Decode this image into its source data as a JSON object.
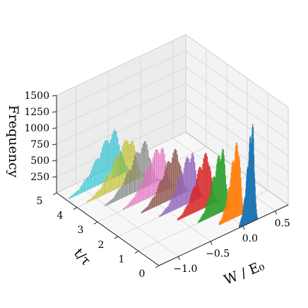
{
  "chart_data": {
    "type": "3d-histogram",
    "xlabel": "W / E₀",
    "ylabel": "t/τ",
    "zlabel": "Frequency",
    "x_ticks": [
      "−1.0",
      "−0.5",
      "0.0",
      "0.5"
    ],
    "y_ticks": [
      "0",
      "1",
      "2",
      "3",
      "4",
      "5"
    ],
    "z_ticks": [
      "250",
      "500",
      "750",
      "1000",
      "1250",
      "1500"
    ],
    "xlim": [
      -1.3,
      0.7
    ],
    "ylim": [
      0,
      5
    ],
    "zlim": [
      0,
      1500
    ],
    "grid": true,
    "series": [
      {
        "t": 0.0,
        "color": "#1f77b4",
        "peak_W": 0.15,
        "width_W": 0.05,
        "peak_freq": 1350
      },
      {
        "t": 0.5,
        "color": "#ff7f0e",
        "peak_W": 0.08,
        "width_W": 0.07,
        "peak_freq": 1050
      },
      {
        "t": 1.0,
        "color": "#2ca02c",
        "peak_W": 0.0,
        "width_W": 0.09,
        "peak_freq": 880
      },
      {
        "t": 1.5,
        "color": "#d62728",
        "peak_W": -0.08,
        "width_W": 0.11,
        "peak_freq": 760
      },
      {
        "t": 2.0,
        "color": "#9467bd",
        "peak_W": -0.16,
        "width_W": 0.12,
        "peak_freq": 700
      },
      {
        "t": 2.5,
        "color": "#8c564b",
        "peak_W": -0.24,
        "width_W": 0.13,
        "peak_freq": 670
      },
      {
        "t": 3.0,
        "color": "#e377c2",
        "peak_W": -0.32,
        "width_W": 0.14,
        "peak_freq": 660
      },
      {
        "t": 3.5,
        "color": "#7f7f7f",
        "peak_W": -0.4,
        "width_W": 0.15,
        "peak_freq": 640
      },
      {
        "t": 4.0,
        "color": "#bcbd22",
        "peak_W": -0.48,
        "width_W": 0.16,
        "peak_freq": 640
      },
      {
        "t": 4.5,
        "color": "#17becf",
        "peak_W": -0.56,
        "width_W": 0.17,
        "peak_freq": 660
      }
    ]
  }
}
